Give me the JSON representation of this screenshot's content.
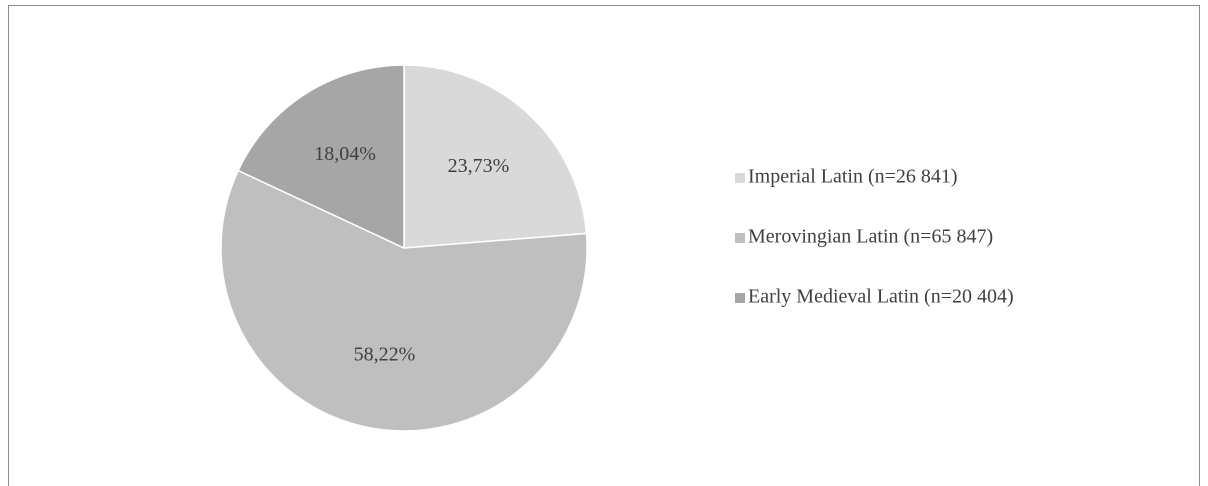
{
  "chart_data": {
    "type": "pie",
    "categories": [
      "Imperial Latin (n=26 841)",
      "Merovingian Latin (n=65 847)",
      "Early Medieval Latin (n=20 404)"
    ],
    "values": [
      23.73,
      58.22,
      18.04
    ],
    "value_labels": [
      "23,73%",
      "58,22%",
      "18,04%"
    ],
    "colors": [
      "#d9d9d9",
      "#bfbfbf",
      "#a6a6a6"
    ],
    "legend": "right"
  }
}
